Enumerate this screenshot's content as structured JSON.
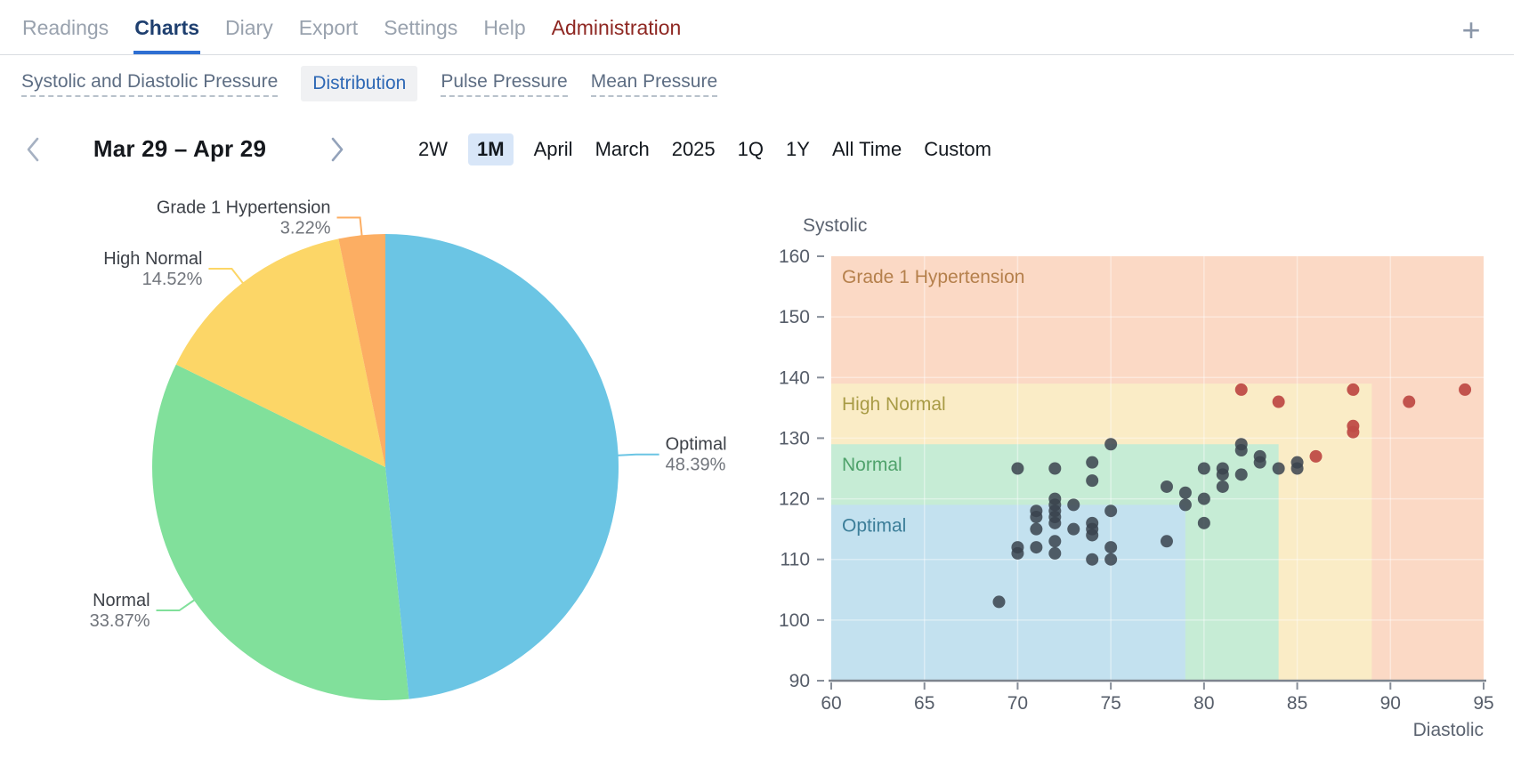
{
  "nav": {
    "items": [
      {
        "label": "Readings"
      },
      {
        "label": "Charts",
        "active": true
      },
      {
        "label": "Diary"
      },
      {
        "label": "Export"
      },
      {
        "label": "Settings"
      },
      {
        "label": "Help"
      },
      {
        "label": "Administration",
        "variant": "admin"
      }
    ],
    "add_icon": "plus-icon"
  },
  "subnav": {
    "items": [
      {
        "label": "Systolic and Diastolic Pressure"
      },
      {
        "label": "Distribution",
        "active": true
      },
      {
        "label": "Pulse Pressure"
      },
      {
        "label": "Mean Pressure"
      }
    ]
  },
  "toolbar": {
    "prev_icon": "chevron-left-icon",
    "next_icon": "chevron-right-icon",
    "date_range": "Mar 29 – Apr 29",
    "periods": [
      {
        "label": "2W"
      },
      {
        "label": "1M",
        "active": true
      },
      {
        "label": "April"
      },
      {
        "label": "March"
      },
      {
        "label": "2025"
      },
      {
        "label": "1Q"
      },
      {
        "label": "1Y"
      },
      {
        "label": "All Time"
      },
      {
        "label": "Custom"
      }
    ]
  },
  "colors": {
    "active_tab": "#1e3f6f",
    "tab_underline": "#2e6fd2",
    "inactive_tab": "#99a2ae",
    "admin_tab": "#8e2722",
    "subnav_active": "#2e68b5",
    "period_active_bg": "#d8e6f8",
    "normal_point": "#39434d",
    "flagged_point": "#bf4c47"
  },
  "chart_data": [
    {
      "type": "pie",
      "start_angle": "12 o'clock",
      "direction": "clockwise",
      "slices": [
        {
          "label": "Optimal",
          "pct": 48.39,
          "pct_label": "48.39%",
          "color": "#6bc5e4"
        },
        {
          "label": "Normal",
          "pct": 33.87,
          "pct_label": "33.87%",
          "color": "#81e09b"
        },
        {
          "label": "High Normal",
          "pct": 14.52,
          "pct_label": "14.52%",
          "color": "#fcd667"
        },
        {
          "label": "Grade 1 Hypertension",
          "pct": 3.22,
          "pct_label": "3.22%",
          "color": "#fcae63"
        }
      ]
    },
    {
      "type": "scatter",
      "xlabel": "Diastolic",
      "ylabel": "Systolic",
      "xlim": [
        60,
        95
      ],
      "ylim": [
        90,
        160
      ],
      "xticks": [
        60,
        65,
        70,
        75,
        80,
        85,
        90,
        95
      ],
      "yticks": [
        90,
        100,
        110,
        120,
        130,
        140,
        150,
        160
      ],
      "grid": "faint white lines inside zones",
      "zones": [
        {
          "label": "Grade 1 Hypertension",
          "x_max": 95,
          "y_max": 160,
          "fill": "#fbd9c5",
          "label_color": "#b5804c"
        },
        {
          "label": "High Normal",
          "x_max": 89,
          "y_max": 139,
          "fill": "#faecc6",
          "label_color": "#a89b45"
        },
        {
          "label": "Normal",
          "x_max": 84,
          "y_max": 129,
          "fill": "#c6ecd5",
          "label_color": "#4fa26b"
        },
        {
          "label": "Optimal",
          "x_max": 79,
          "y_max": 119,
          "fill": "#c3e1ef",
          "label_color": "#3c7e99"
        }
      ],
      "points": [
        [
          69,
          103
        ],
        [
          70,
          125
        ],
        [
          70,
          112
        ],
        [
          70,
          111
        ],
        [
          71,
          118
        ],
        [
          71,
          117
        ],
        [
          71,
          115
        ],
        [
          71,
          112
        ],
        [
          72,
          125
        ],
        [
          72,
          120
        ],
        [
          72,
          119
        ],
        [
          72,
          118
        ],
        [
          72,
          117
        ],
        [
          72,
          116
        ],
        [
          72,
          113
        ],
        [
          72,
          111
        ],
        [
          73,
          119
        ],
        [
          73,
          115
        ],
        [
          74,
          126
        ],
        [
          74,
          123
        ],
        [
          74,
          116
        ],
        [
          74,
          115
        ],
        [
          74,
          114
        ],
        [
          74,
          110
        ],
        [
          75,
          129
        ],
        [
          75,
          118
        ],
        [
          75,
          112
        ],
        [
          75,
          110
        ],
        [
          78,
          122
        ],
        [
          78,
          113
        ],
        [
          79,
          121
        ],
        [
          79,
          119
        ],
        [
          80,
          125
        ],
        [
          80,
          120
        ],
        [
          80,
          116
        ],
        [
          81,
          125
        ],
        [
          81,
          124
        ],
        [
          81,
          122
        ],
        [
          82,
          129
        ],
        [
          82,
          128
        ],
        [
          82,
          124
        ],
        [
          83,
          127
        ],
        [
          83,
          126
        ],
        [
          84,
          125
        ],
        [
          85,
          126
        ],
        [
          85,
          125
        ]
      ],
      "flagged_points": [
        [
          82,
          138
        ],
        [
          84,
          136
        ],
        [
          86,
          127
        ],
        [
          88,
          138
        ],
        [
          88,
          132
        ],
        [
          88,
          131
        ],
        [
          91,
          136
        ],
        [
          94,
          138
        ]
      ],
      "point_color": "#39434d",
      "flagged_color": "#bf4c47",
      "axis_color": "#7d848e",
      "tick_label_color": "#565d69"
    }
  ]
}
